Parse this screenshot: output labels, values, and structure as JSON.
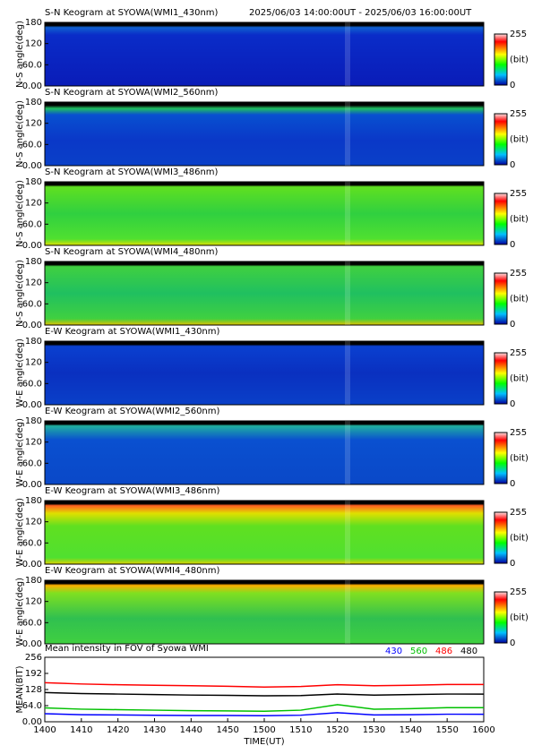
{
  "chart_data": [
    {
      "type": "heatmap",
      "title": "S-N Keogram at SYOWA(WMI1_430nm)",
      "subtitle": "2025/06/03 14:00:00UT - 2025/06/03 16:00:00UT",
      "ylabel": "N-S angle(deg)",
      "ylim": [
        0,
        180
      ],
      "yticks": [
        180,
        120,
        {
          "value": 60,
          "label": "60.0"
        },
        {
          "value": 0,
          "label": "0.00"
        }
      ],
      "colorbar": {
        "label": "(bit)",
        "ticks": [
          255,
          0
        ]
      }
    },
    {
      "type": "heatmap",
      "title": "S-N Keogram at SYOWA(WMI2_560nm)",
      "ylabel": "N-S angle(deg)",
      "ylim": [
        0,
        180
      ],
      "yticks": [
        180,
        120,
        {
          "value": 60,
          "label": "60.0"
        },
        {
          "value": 0,
          "label": "0.00"
        }
      ],
      "colorbar": {
        "label": "(bit)",
        "ticks": [
          255,
          0
        ]
      }
    },
    {
      "type": "heatmap",
      "title": "S-N Keogram at SYOWA(WMI3_486nm)",
      "ylabel": "N-S angle(deg)",
      "ylim": [
        0,
        180
      ],
      "yticks": [
        180,
        120,
        {
          "value": 60,
          "label": "60.0"
        },
        {
          "value": 0,
          "label": "0.00"
        }
      ],
      "colorbar": {
        "label": "(bit)",
        "ticks": [
          255,
          0
        ]
      }
    },
    {
      "type": "heatmap",
      "title": "S-N Keogram at SYOWA(WMI4_480nm)",
      "ylabel": "N-S angle(deg)",
      "ylim": [
        0,
        180
      ],
      "yticks": [
        180,
        120,
        {
          "value": 60,
          "label": "60.0"
        },
        {
          "value": 0,
          "label": "0.00"
        }
      ],
      "colorbar": {
        "label": "(bit)",
        "ticks": [
          255,
          0
        ]
      }
    },
    {
      "type": "heatmap",
      "title": "E-W Keogram at SYOWA(WMI1_430nm)",
      "ylabel": "W-E angle(deg)",
      "ylim": [
        0,
        180
      ],
      "yticks": [
        180,
        120,
        {
          "value": 60,
          "label": "60.0"
        },
        {
          "value": 0,
          "label": "0.00"
        }
      ],
      "colorbar": {
        "label": "(bit)",
        "ticks": [
          255,
          0
        ]
      }
    },
    {
      "type": "heatmap",
      "title": "E-W Keogram at SYOWA(WMI2_560nm)",
      "ylabel": "W-E angle(deg)",
      "ylim": [
        0,
        180
      ],
      "yticks": [
        180,
        120,
        {
          "value": 60,
          "label": "60.0"
        },
        {
          "value": 0,
          "label": "0.00"
        }
      ],
      "colorbar": {
        "label": "(bit)",
        "ticks": [
          255,
          0
        ]
      }
    },
    {
      "type": "heatmap",
      "title": "E-W Keogram at SYOWA(WMI3_486nm)",
      "ylabel": "W-E angle(deg)",
      "ylim": [
        0,
        180
      ],
      "yticks": [
        180,
        120,
        {
          "value": 60,
          "label": "60.0"
        },
        {
          "value": 0,
          "label": "0.00"
        }
      ],
      "colorbar": {
        "label": "(bit)",
        "ticks": [
          255,
          0
        ]
      }
    },
    {
      "type": "heatmap",
      "title": "E-W Keogram at SYOWA(WMI4_480nm)",
      "ylabel": "W-E angle(deg)",
      "ylim": [
        0,
        180
      ],
      "yticks": [
        180,
        120,
        {
          "value": 60,
          "label": "60.0"
        },
        {
          "value": 0,
          "label": "0.00"
        }
      ],
      "colorbar": {
        "label": "(bit)",
        "ticks": [
          255,
          0
        ]
      }
    },
    {
      "type": "line",
      "title": "Mean intensity in FOV of Syowa WMI",
      "ylabel": "MEAN(BIT)",
      "xlabel": "TIME(UT)",
      "categories": [
        "1400",
        "1410",
        "1420",
        "1430",
        "1440",
        "1450",
        "1500",
        "1510",
        "1520",
        "1530",
        "1540",
        "1550",
        "1600"
      ],
      "ylim": [
        0,
        256
      ],
      "yticks": [
        256,
        192,
        128,
        {
          "value": 64,
          "label": "64.0"
        },
        {
          "value": 0,
          "label": "0.00"
        }
      ],
      "series": [
        {
          "name": "430",
          "color": "#0000ff",
          "values": [
            32,
            28,
            27,
            26,
            25,
            25,
            24,
            26,
            36,
            27,
            28,
            30,
            30
          ]
        },
        {
          "name": "560",
          "color": "#00c000",
          "values": [
            55,
            50,
            48,
            46,
            44,
            43,
            42,
            46,
            68,
            50,
            52,
            56,
            56
          ]
        },
        {
          "name": "486",
          "color": "#ff0000",
          "values": [
            155,
            150,
            147,
            145,
            143,
            141,
            138,
            140,
            147,
            143,
            145,
            148,
            148
          ]
        },
        {
          "name": "480",
          "color": "#000000",
          "values": [
            116,
            112,
            110,
            108,
            106,
            105,
            103,
            104,
            110,
            106,
            108,
            110,
            110
          ]
        }
      ]
    }
  ]
}
